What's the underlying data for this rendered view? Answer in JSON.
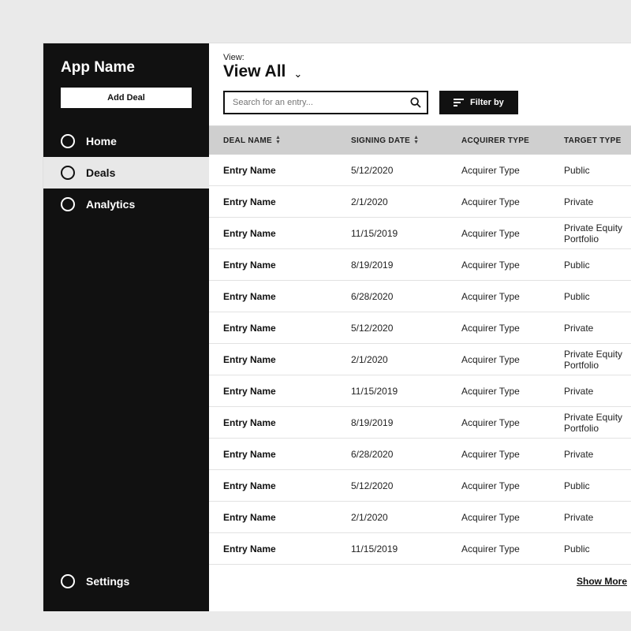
{
  "app": {
    "title": "App Name",
    "add_button": "Add Deal"
  },
  "sidebar": {
    "items": [
      {
        "label": "Home",
        "selected": false
      },
      {
        "label": "Deals",
        "selected": true
      },
      {
        "label": "Analytics",
        "selected": false
      }
    ],
    "bottom": {
      "label": "Settings"
    }
  },
  "view": {
    "label": "View:",
    "value": "View All"
  },
  "search": {
    "placeholder": "Search for an entry..."
  },
  "filter": {
    "label": "Filter by"
  },
  "table": {
    "columns": [
      {
        "label": "DEAL NAME",
        "sortable": true
      },
      {
        "label": "SIGNING DATE",
        "sortable": true
      },
      {
        "label": "ACQUIRER TYPE",
        "sortable": false
      },
      {
        "label": "TARGET TYPE",
        "sortable": false
      }
    ],
    "rows": [
      {
        "name": "Entry Name",
        "date": "5/12/2020",
        "acq": "Acquirer Type",
        "tgt": "Public"
      },
      {
        "name": "Entry Name",
        "date": "2/1/2020",
        "acq": "Acquirer Type",
        "tgt": "Private"
      },
      {
        "name": "Entry Name",
        "date": "11/15/2019",
        "acq": "Acquirer Type",
        "tgt": "Private Equity Portfolio"
      },
      {
        "name": "Entry Name",
        "date": "8/19/2019",
        "acq": "Acquirer Type",
        "tgt": "Public"
      },
      {
        "name": "Entry Name",
        "date": "6/28/2020",
        "acq": "Acquirer Type",
        "tgt": "Public"
      },
      {
        "name": "Entry Name",
        "date": "5/12/2020",
        "acq": "Acquirer Type",
        "tgt": "Private"
      },
      {
        "name": "Entry Name",
        "date": "2/1/2020",
        "acq": "Acquirer Type",
        "tgt": "Private Equity Portfolio"
      },
      {
        "name": "Entry Name",
        "date": "11/15/2019",
        "acq": "Acquirer Type",
        "tgt": "Private"
      },
      {
        "name": "Entry Name",
        "date": "8/19/2019",
        "acq": "Acquirer Type",
        "tgt": "Private Equity Portfolio"
      },
      {
        "name": "Entry Name",
        "date": "6/28/2020",
        "acq": "Acquirer Type",
        "tgt": "Private"
      },
      {
        "name": "Entry Name",
        "date": "5/12/2020",
        "acq": "Acquirer Type",
        "tgt": "Public"
      },
      {
        "name": "Entry Name",
        "date": "2/1/2020",
        "acq": "Acquirer Type",
        "tgt": "Private"
      },
      {
        "name": "Entry Name",
        "date": "11/15/2019",
        "acq": "Acquirer Type",
        "tgt": "Public"
      }
    ],
    "show_more": "Show More"
  },
  "colors": {
    "sidebar_bg": "#111111",
    "selected_bg": "#e8e8e8",
    "header_bg": "#cfcfcf",
    "page_bg": "#eaeaea",
    "border": "#e2e2e2"
  }
}
